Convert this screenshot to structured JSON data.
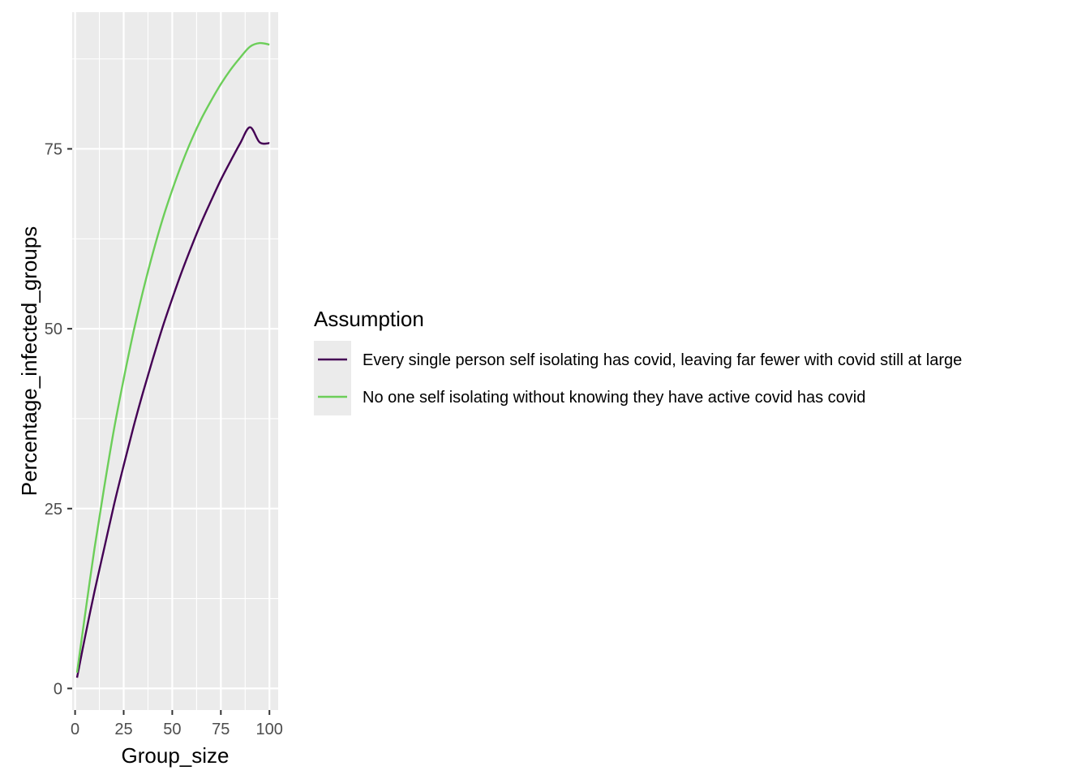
{
  "chart_data": {
    "type": "line",
    "xlabel": "Group_size",
    "ylabel": "Percentage_infected_groups",
    "xlim": [
      -1.5,
      104.5
    ],
    "ylim": [
      -3,
      94
    ],
    "x_ticks": [
      "0",
      "25",
      "50",
      "75",
      "100"
    ],
    "x_tick_values": [
      0,
      25,
      50,
      75,
      100
    ],
    "y_ticks": [
      "0",
      "25",
      "50",
      "75"
    ],
    "y_tick_values": [
      0,
      25,
      50,
      75
    ],
    "grid": true,
    "legend": {
      "title": "Assumption",
      "position": "right"
    },
    "x": [
      1,
      5,
      10,
      15,
      20,
      25,
      30,
      35,
      40,
      45,
      50,
      55,
      60,
      65,
      70,
      75,
      80,
      85,
      90,
      95,
      100
    ],
    "series": [
      {
        "name": "Every single person self isolating has covid, leaving far fewer with covid still at large",
        "color": "#440154",
        "values": [
          1.5,
          7.0,
          13.5,
          19.5,
          25.5,
          31.0,
          36.3,
          41.2,
          45.8,
          50.2,
          54.2,
          58.0,
          61.5,
          64.8,
          67.8,
          70.7,
          73.3,
          75.8,
          78.0,
          75.9,
          75.8
        ]
      },
      {
        "name": "No one self isolating without knowing they have active covid has covid",
        "color": "#6CCE59",
        "values": [
          2.2,
          10.0,
          19.5,
          28.0,
          36.0,
          43.0,
          49.5,
          55.3,
          60.5,
          65.2,
          69.3,
          73.0,
          76.3,
          79.2,
          81.7,
          84.0,
          86.0,
          87.7,
          89.2,
          89.7,
          89.5
        ]
      }
    ]
  }
}
